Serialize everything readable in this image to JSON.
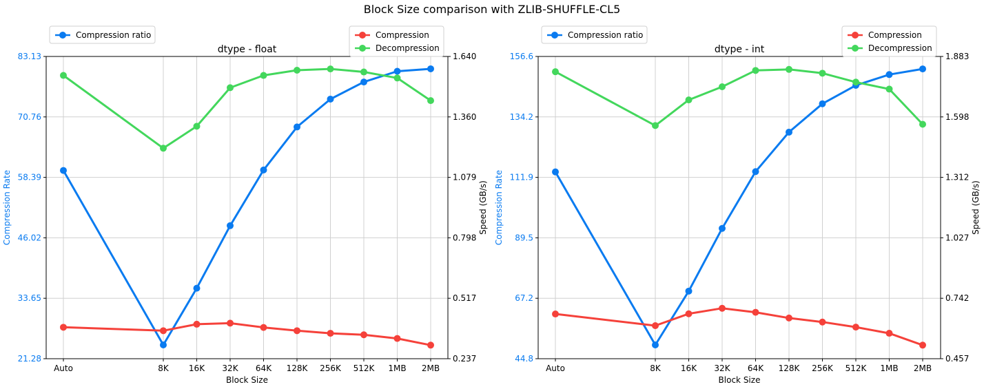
{
  "title": "Block Size comparison with ZLIB-SHUFFLE-CL5",
  "colors": {
    "ratio": "#0a7bf0",
    "compression": "#f5413a",
    "decompression": "#43d75c",
    "grid": "#d0d0d0"
  },
  "chart_data": [
    {
      "type": "line",
      "title": "dtype - float",
      "xlabel": "Block Size",
      "ylabel_left": "Compression Rate",
      "ylabel_right": "Speed (GB/s)",
      "categories": [
        "Auto",
        "8K",
        "16K",
        "32K",
        "64K",
        "128K",
        "256K",
        "512K",
        "1MB",
        "2MB"
      ],
      "y_left_ticks": [
        "21.28",
        "33.65",
        "46.02",
        "58.39",
        "70.76",
        "83.13"
      ],
      "y_left_lim": [
        21.28,
        83.13
      ],
      "y_right_ticks": [
        "0.237",
        "0.517",
        "0.798",
        "1.079",
        "1.360",
        "1.640"
      ],
      "y_right_lim": [
        0.237,
        1.64
      ],
      "grid": true,
      "legend_left": "top-left",
      "legend_right": "top-right",
      "series": [
        {
          "name": "Compression ratio",
          "axis": "left",
          "values": [
            59.8,
            24.1,
            35.7,
            48.5,
            59.9,
            68.7,
            74.4,
            77.9,
            80.1,
            80.6
          ]
        },
        {
          "name": "Compression",
          "axis": "right",
          "values": [
            0.383,
            0.367,
            0.397,
            0.402,
            0.382,
            0.367,
            0.355,
            0.348,
            0.331,
            0.3
          ]
        },
        {
          "name": "Decompression",
          "axis": "right",
          "values": [
            1.552,
            1.214,
            1.316,
            1.495,
            1.552,
            1.576,
            1.582,
            1.568,
            1.54,
            1.435
          ]
        }
      ]
    },
    {
      "type": "line",
      "title": "dtype - int",
      "xlabel": "Block Size",
      "ylabel_left": "Compression Rate",
      "ylabel_right": "Speed (GB/s)",
      "categories": [
        "Auto",
        "8K",
        "16K",
        "32K",
        "64K",
        "128K",
        "256K",
        "512K",
        "1MB",
        "2MB"
      ],
      "y_left_ticks": [
        "44.8",
        "67.2",
        "89.5",
        "111.9",
        "134.2",
        "156.6"
      ],
      "y_left_lim": [
        44.8,
        156.6
      ],
      "y_right_ticks": [
        "0.457",
        "0.742",
        "1.027",
        "1.312",
        "1.598",
        "1.883"
      ],
      "y_right_lim": [
        0.457,
        1.883
      ],
      "grid": true,
      "legend_left": "top-left",
      "legend_right": "top-right",
      "series": [
        {
          "name": "Compression ratio",
          "axis": "left",
          "values": [
            113.9,
            49.9,
            69.8,
            93.0,
            114.0,
            128.6,
            139.1,
            145.9,
            149.9,
            152.0
          ]
        },
        {
          "name": "Compression",
          "axis": "right",
          "values": [
            0.668,
            0.613,
            0.669,
            0.695,
            0.676,
            0.649,
            0.63,
            0.606,
            0.577,
            0.521
          ]
        },
        {
          "name": "Decompression",
          "axis": "right",
          "values": [
            1.811,
            1.557,
            1.678,
            1.74,
            1.817,
            1.822,
            1.804,
            1.762,
            1.729,
            1.563
          ]
        }
      ]
    }
  ]
}
